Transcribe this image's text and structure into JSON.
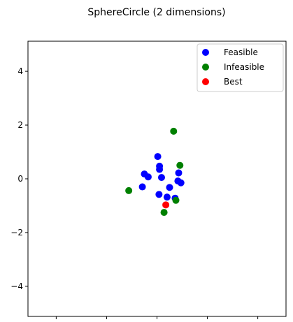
{
  "chart_data": {
    "type": "scatter",
    "title": "SphereCircle (2 dimensions)",
    "xlabel": "",
    "ylabel": "",
    "xlim": [
      -5.12,
      5.12
    ],
    "ylim": [
      -5.12,
      5.12
    ],
    "xticks": [
      -4,
      -2,
      0,
      2,
      4
    ],
    "yticks": [
      -4,
      -2,
      0,
      2,
      4
    ],
    "grid": false,
    "legend_position": "top-right",
    "series": [
      {
        "name": "Feasible",
        "color": "#0000ff",
        "points": [
          [
            0.03,
            0.83
          ],
          [
            0.1,
            0.47
          ],
          [
            0.1,
            0.35
          ],
          [
            0.18,
            0.05
          ],
          [
            -0.5,
            0.18
          ],
          [
            -0.35,
            0.07
          ],
          [
            -0.58,
            -0.3
          ],
          [
            0.5,
            -0.32
          ],
          [
            0.86,
            0.22
          ],
          [
            0.83,
            -0.08
          ],
          [
            0.95,
            -0.15
          ],
          [
            0.08,
            -0.58
          ],
          [
            0.4,
            -0.68
          ],
          [
            0.72,
            -0.72
          ]
        ]
      },
      {
        "name": "Infeasible",
        "color": "#008000",
        "points": [
          [
            0.66,
            1.77
          ],
          [
            0.91,
            0.5
          ],
          [
            -1.12,
            -0.44
          ],
          [
            0.75,
            -0.8
          ],
          [
            0.28,
            -1.25
          ]
        ]
      },
      {
        "name": "Best",
        "color": "#ff0000",
        "points": [
          [
            0.35,
            -0.97
          ]
        ]
      }
    ]
  }
}
